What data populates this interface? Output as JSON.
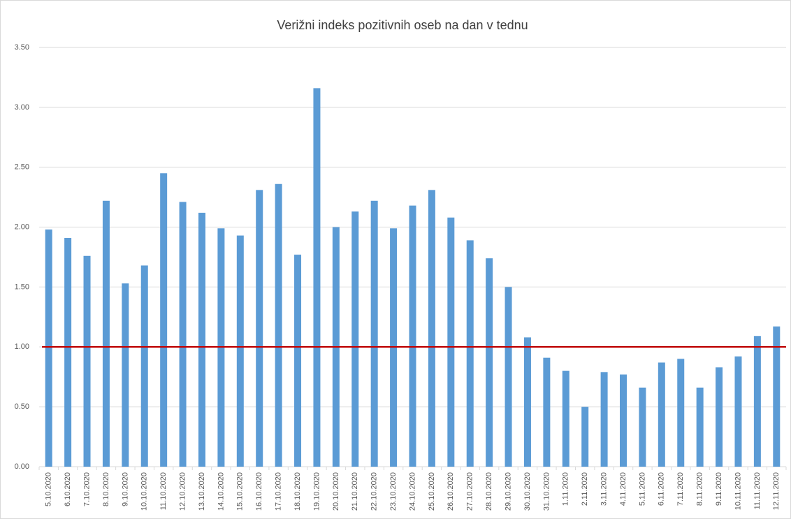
{
  "chart_data": {
    "type": "bar",
    "title": "Verižni indeks pozitivnih oseb na dan v tednu",
    "categories": [
      "5.10.2020",
      "6.10.2020",
      "7.10.2020",
      "8.10.2020",
      "9.10.2020",
      "10.10.2020",
      "11.10.2020",
      "12.10.2020",
      "13.10.2020",
      "14.10.2020",
      "15.10.2020",
      "16.10.2020",
      "17.10.2020",
      "18.10.2020",
      "19.10.2020",
      "20.10.2020",
      "21.10.2020",
      "22.10.2020",
      "23.10.2020",
      "24.10.2020",
      "25.10.2020",
      "26.10.2020",
      "27.10.2020",
      "28.10.2020",
      "29.10.2020",
      "30.10.2020",
      "31.10.2020",
      "1.11.2020",
      "2.11.2020",
      "3.11.2020",
      "4.11.2020",
      "5.11.2020",
      "6.11.2020",
      "7.11.2020",
      "8.11.2020",
      "9.11.2020",
      "10.11.2020",
      "11.11.2020",
      "12.11.2020"
    ],
    "values": [
      1.98,
      1.91,
      1.76,
      2.22,
      1.53,
      1.68,
      2.45,
      2.21,
      2.12,
      1.99,
      1.93,
      2.31,
      2.36,
      1.77,
      3.16,
      2.0,
      2.13,
      2.22,
      1.99,
      2.18,
      2.31,
      2.08,
      1.89,
      1.74,
      1.5,
      1.08,
      0.91,
      0.8,
      0.5,
      0.79,
      0.77,
      0.66,
      0.87,
      0.9,
      0.66,
      0.83,
      0.92,
      1.09,
      1.17
    ],
    "color": "#5b9bd5",
    "reference_line": {
      "value": 1,
      "color": "#c00000"
    },
    "ylim": [
      0,
      3.5
    ],
    "yticks": [
      {
        "value": 0,
        "label": "0.00"
      },
      {
        "value": 0.5,
        "label": "0.50"
      },
      {
        "value": 1,
        "label": "1.00"
      },
      {
        "value": 1.5,
        "label": "1.50"
      },
      {
        "value": 2,
        "label": "2.00"
      },
      {
        "value": 2.5,
        "label": "2.50"
      },
      {
        "value": 3,
        "label": "3.00"
      },
      {
        "value": 3.5,
        "label": "3.50"
      }
    ],
    "grid": true
  }
}
